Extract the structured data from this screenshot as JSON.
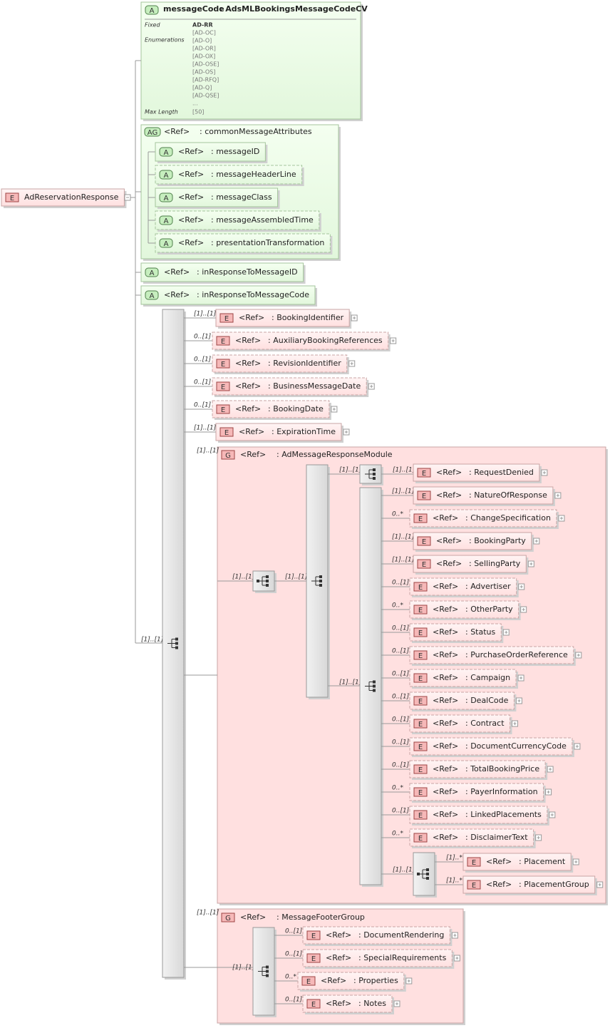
{
  "root": {
    "badge": "E",
    "name": "AdReservationResponse"
  },
  "message_code": {
    "badge": "A",
    "name": "messageCode",
    "type": ": AdsMLBookingsMessageCodeCV",
    "facets": [
      {
        "label": "Fixed",
        "values": [
          "AD-RR"
        ]
      },
      {
        "label": "Enumerations",
        "values": [
          "[AD-OC]",
          "[AD-O]",
          "[AD-OR]",
          "[AD-OX]",
          "[AD-OSE]",
          "[AD-OS]",
          "[AD-RFQ]",
          "[AD-Q]",
          "[AD-QSE]",
          "..."
        ]
      },
      {
        "label": "Max Length",
        "values": [
          "[50]"
        ]
      }
    ]
  },
  "attribute_group": {
    "badge": "AG",
    "ref": "<Ref>",
    "name": ": commonMessageAttributes",
    "attributes": [
      {
        "badge": "A",
        "ref": "<Ref>",
        "name": ": messageID"
      },
      {
        "badge": "A",
        "ref": "<Ref>",
        "name": ": messageHeaderLine"
      },
      {
        "badge": "A",
        "ref": "<Ref>",
        "name": ": messageClass"
      },
      {
        "badge": "A",
        "ref": "<Ref>",
        "name": ": messageAssembledTime"
      },
      {
        "badge": "A",
        "ref": "<Ref>",
        "name": ": presentationTransformation"
      }
    ]
  },
  "attributes": [
    {
      "badge": "A",
      "ref": "<Ref>",
      "name": ": inResponseToMessageID"
    },
    {
      "badge": "A",
      "ref": "<Ref>",
      "name": ": inResponseToMessageCode"
    }
  ],
  "sequence": {
    "occurs": "[1]..[1]",
    "elements": [
      {
        "occurs": "[1]..[1]",
        "badge": "E",
        "ref": "<Ref>",
        "name": ": BookingIdentifier"
      },
      {
        "occurs": "0..[1]",
        "badge": "E",
        "ref": "<Ref>",
        "name": ": AuxiliaryBookingReferences"
      },
      {
        "occurs": "0..[1]",
        "badge": "E",
        "ref": "<Ref>",
        "name": ": RevisionIdentifier"
      },
      {
        "occurs": "0..[1]",
        "badge": "E",
        "ref": "<Ref>",
        "name": ": BusinessMessageDate"
      },
      {
        "occurs": "0..[1]",
        "badge": "E",
        "ref": "<Ref>",
        "name": ": BookingDate"
      },
      {
        "occurs": "[1]..[1]",
        "badge": "E",
        "ref": "<Ref>",
        "name": ": ExpirationTime"
      }
    ]
  },
  "module": {
    "occurs": "[1]..[1]",
    "badge": "G",
    "ref": "<Ref>",
    "name": ": AdMessageResponseModule",
    "choice_occurs": "[1]..[1]",
    "inner_sequence_occurs": "[1]..[1]",
    "denied_sequence_occurs": "[1]..[1]",
    "request_denied": {
      "occurs": "[1]..[1]",
      "badge": "E",
      "ref": "<Ref>",
      "name": ": RequestDenied"
    },
    "main_sequence_occurs": "[1]..[1]",
    "elements": [
      {
        "occurs": "[1]..[1]",
        "badge": "E",
        "ref": "<Ref>",
        "name": ": NatureOfResponse"
      },
      {
        "occurs": "0..*",
        "badge": "E",
        "ref": "<Ref>",
        "name": ": ChangeSpecification"
      },
      {
        "occurs": "[1]..[1]",
        "badge": "E",
        "ref": "<Ref>",
        "name": ": BookingParty"
      },
      {
        "occurs": "[1]..[1]",
        "badge": "E",
        "ref": "<Ref>",
        "name": ": SellingParty"
      },
      {
        "occurs": "0..[1]",
        "badge": "E",
        "ref": "<Ref>",
        "name": ": Advertiser"
      },
      {
        "occurs": "0..*",
        "badge": "E",
        "ref": "<Ref>",
        "name": ": OtherParty"
      },
      {
        "occurs": "0..[1]",
        "badge": "E",
        "ref": "<Ref>",
        "name": ": Status"
      },
      {
        "occurs": "0..[1]",
        "badge": "E",
        "ref": "<Ref>",
        "name": ": PurchaseOrderReference"
      },
      {
        "occurs": "0..[1]",
        "badge": "E",
        "ref": "<Ref>",
        "name": ": Campaign"
      },
      {
        "occurs": "0..[1]",
        "badge": "E",
        "ref": "<Ref>",
        "name": ": DealCode"
      },
      {
        "occurs": "0..[1]",
        "badge": "E",
        "ref": "<Ref>",
        "name": ": Contract"
      },
      {
        "occurs": "0..[1]",
        "badge": "E",
        "ref": "<Ref>",
        "name": ": DocumentCurrencyCode"
      },
      {
        "occurs": "0..[1]",
        "badge": "E",
        "ref": "<Ref>",
        "name": ": TotalBookingPrice"
      },
      {
        "occurs": "0..*",
        "badge": "E",
        "ref": "<Ref>",
        "name": ": PayerInformation"
      },
      {
        "occurs": "0..[1]",
        "badge": "E",
        "ref": "<Ref>",
        "name": ": LinkedPlacements"
      },
      {
        "occurs": "0..*",
        "badge": "E",
        "ref": "<Ref>",
        "name": ": DisclaimerText"
      }
    ],
    "placement_choice_occurs": "[1]..[1]",
    "placement_elements": [
      {
        "occurs": "[1]..*",
        "badge": "E",
        "ref": "<Ref>",
        "name": ": Placement"
      },
      {
        "occurs": "[1]..*",
        "badge": "E",
        "ref": "<Ref>",
        "name": ": PlacementGroup"
      }
    ]
  },
  "footer": {
    "occurs": "[1]..[1]",
    "badge": "G",
    "ref": "<Ref>",
    "name": ": MessageFooterGroup",
    "sequence_occurs": "[1]..[1]",
    "elements": [
      {
        "occurs": "0..[1]",
        "badge": "E",
        "ref": "<Ref>",
        "name": ": DocumentRendering"
      },
      {
        "occurs": "0..[1]",
        "badge": "E",
        "ref": "<Ref>",
        "name": ": SpecialRequirements"
      },
      {
        "occurs": "0..*",
        "badge": "E",
        "ref": "<Ref>",
        "name": ": Properties"
      },
      {
        "occurs": "0..[1]",
        "badge": "E",
        "ref": "<Ref>",
        "name": ": Notes"
      }
    ]
  }
}
